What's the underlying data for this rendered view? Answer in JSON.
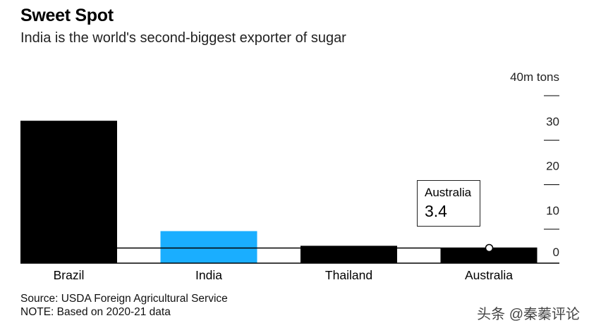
{
  "header": {
    "title": "Sweet Spot",
    "subtitle": "India is the world's second-biggest exporter of sugar"
  },
  "footer": {
    "source": "Source: USDA Foreign Agricultural Service",
    "note": "NOTE: Based on 2020-21 data"
  },
  "watermark": "头条 @秦蓁评论",
  "tooltip": {
    "label": "Australia",
    "value": "3.4"
  },
  "colors": {
    "default_bar": "#000000",
    "highlight_bar": "#1aaeff",
    "text": "#000000"
  },
  "chart_data": {
    "type": "bar",
    "title": "Sweet Spot",
    "subtitle": "India is the world's second-biggest exporter of sugar",
    "categories": [
      "Brazil",
      "India",
      "Thailand",
      "Australia"
    ],
    "values": [
      32,
      7.2,
      3.9,
      3.4
    ],
    "highlight": "India",
    "ylabel": "40m tons",
    "ylim": [
      0,
      40
    ],
    "yticks": [
      0,
      10,
      20,
      30,
      40
    ],
    "ytick_labels": [
      "0",
      "10",
      "20",
      "30",
      "40m tons"
    ],
    "axis_side": "right",
    "grid": false,
    "annotation": {
      "category": "Australia",
      "label": "Australia",
      "value": "3.4"
    }
  }
}
